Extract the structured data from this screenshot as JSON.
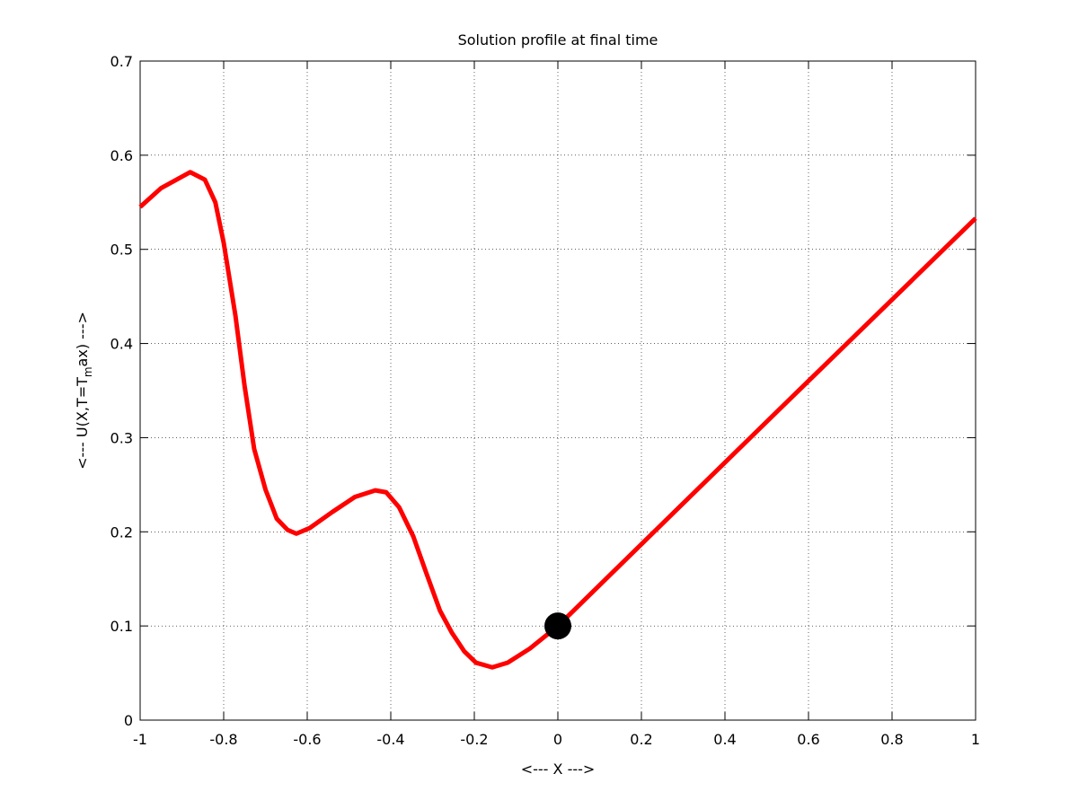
{
  "chart_data": {
    "type": "line",
    "title": "Solution profile at final time",
    "xlabel": "<--- X --->",
    "ylabel": [
      "<--- U(X,T=T",
      "m",
      "ax) --->"
    ],
    "xlim": [
      -1,
      1
    ],
    "ylim": [
      0,
      0.7
    ],
    "xticks": [
      -1,
      -0.8,
      -0.6,
      -0.4,
      -0.2,
      0,
      0.2,
      0.4,
      0.6,
      0.8,
      1
    ],
    "yticks": [
      0,
      0.1,
      0.2,
      0.3,
      0.4,
      0.5,
      0.6,
      0.7
    ],
    "grid": true,
    "series": [
      {
        "color": "#ff0000",
        "x": [
          -1,
          -0.95,
          -0.88,
          -0.845,
          -0.82,
          -0.8,
          -0.772,
          -0.75,
          -0.727,
          -0.7,
          -0.673,
          -0.647,
          -0.626,
          -0.594,
          -0.54,
          -0.486,
          -0.437,
          -0.411,
          -0.38,
          -0.346,
          -0.314,
          -0.282,
          -0.254,
          -0.224,
          -0.196,
          -0.157,
          -0.12,
          -0.067,
          0,
          0.5,
          1
        ],
        "values": [
          0.545,
          0.565,
          0.582,
          0.574,
          0.55,
          0.507,
          0.43,
          0.355,
          0.288,
          0.245,
          0.214,
          0.202,
          0.198,
          0.204,
          0.221,
          0.237,
          0.244,
          0.242,
          0.226,
          0.195,
          0.155,
          0.116,
          0.093,
          0.073,
          0.061,
          0.056,
          0.061,
          0.076,
          0.1,
          0.317,
          0.533
        ]
      }
    ],
    "marker": {
      "x": 0,
      "y": 0.1,
      "color": "#000000"
    }
  }
}
